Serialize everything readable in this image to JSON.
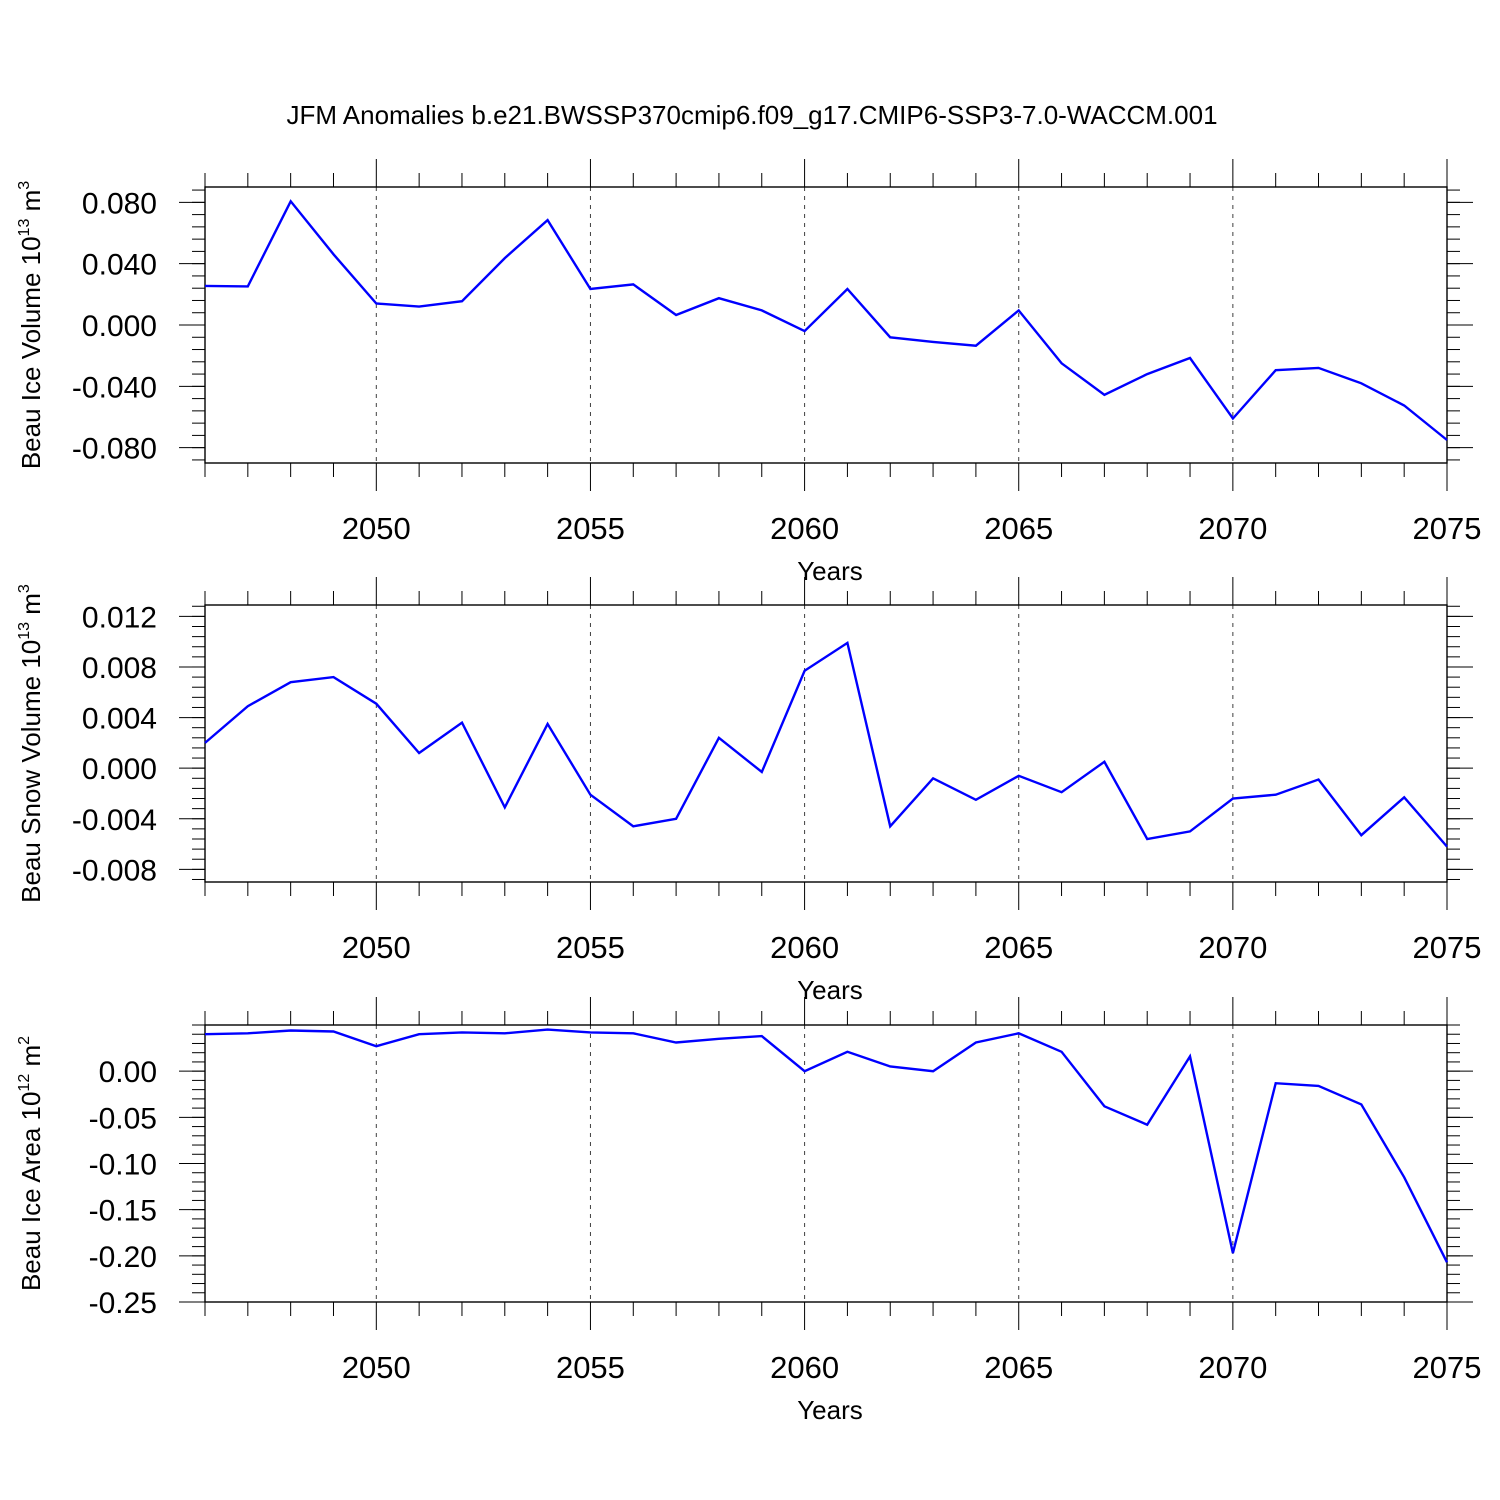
{
  "title": "JFM Anomalies b.e21.BWSSP370cmip6.f09_g17.CMIP6-SSP3-7.0-WACCM.001",
  "line_color": "#0000ff",
  "chart_data": [
    {
      "type": "line",
      "xlabel": "Years",
      "ylabel_main": "Beau Ice Volume 10",
      "ylabel_sup": "13",
      "ylabel_unit": " m",
      "ylabel_unit_sup": "3",
      "xlim": [
        2046,
        2075
      ],
      "ylim": [
        -0.09,
        0.09
      ],
      "xticks": [
        2050,
        2055,
        2060,
        2065,
        2070,
        2075
      ],
      "yticks": [
        0.08,
        0.04,
        0.0,
        -0.04,
        -0.08
      ],
      "ytick_labels": [
        "0.080",
        "0.040",
        "0.000",
        "-0.040",
        "-0.080"
      ],
      "x": [
        2046,
        2047,
        2048,
        2049,
        2050,
        2051,
        2052,
        2053,
        2054,
        2055,
        2056,
        2057,
        2058,
        2059,
        2060,
        2061,
        2062,
        2063,
        2064,
        2065,
        2066,
        2067,
        2068,
        2069,
        2070,
        2071,
        2072,
        2073,
        2074,
        2075
      ],
      "y": [
        0.0255,
        0.0252,
        0.0807,
        0.0461,
        0.014,
        0.012,
        0.0155,
        0.0436,
        0.0684,
        0.0235,
        0.0265,
        0.0065,
        0.0175,
        0.0095,
        -0.004,
        0.0235,
        -0.008,
        -0.011,
        -0.0135,
        0.0095,
        -0.025,
        -0.0455,
        -0.032,
        -0.0215,
        -0.061,
        -0.0295,
        -0.028,
        -0.038,
        -0.0525,
        -0.075
      ]
    },
    {
      "type": "line",
      "xlabel": "Years",
      "ylabel_main": "Beau Snow Volume 10",
      "ylabel_sup": "13",
      "ylabel_unit": " m",
      "ylabel_unit_sup": "3",
      "xlim": [
        2046,
        2075
      ],
      "ylim": [
        -0.009,
        0.0129
      ],
      "xticks": [
        2050,
        2055,
        2060,
        2065,
        2070,
        2075
      ],
      "yticks": [
        0.012,
        0.008,
        0.004,
        0.0,
        -0.004,
        -0.008
      ],
      "ytick_labels": [
        "0.012",
        "0.008",
        "0.004",
        "0.000",
        "-0.004",
        "-0.008"
      ],
      "x": [
        2046,
        2047,
        2048,
        2049,
        2050,
        2051,
        2052,
        2053,
        2054,
        2055,
        2056,
        2057,
        2058,
        2059,
        2060,
        2061,
        2062,
        2063,
        2064,
        2065,
        2066,
        2067,
        2068,
        2069,
        2070,
        2071,
        2072,
        2073,
        2074,
        2075
      ],
      "y": [
        0.002,
        0.0049,
        0.0068,
        0.0072,
        0.0051,
        0.0012,
        0.0036,
        -0.0031,
        0.0035,
        -0.0021,
        -0.0046,
        -0.004,
        0.0024,
        -0.0003,
        0.0077,
        0.0099,
        -0.0046,
        -0.0008,
        -0.0025,
        -0.0006,
        -0.0019,
        0.0005,
        -0.0056,
        -0.005,
        -0.0024,
        -0.0021,
        -0.0009,
        -0.0053,
        -0.0023,
        -0.0062
      ]
    },
    {
      "type": "line",
      "xlabel": "Years",
      "ylabel_main": "Beau Ice Area 10",
      "ylabel_sup": "12",
      "ylabel_unit": " m",
      "ylabel_unit_sup": "2",
      "xlim": [
        2046,
        2075
      ],
      "ylim": [
        -0.25,
        0.05
      ],
      "xticks": [
        2050,
        2055,
        2060,
        2065,
        2070,
        2075
      ],
      "yticks": [
        0.0,
        -0.05,
        -0.1,
        -0.15,
        -0.2,
        -0.25
      ],
      "ytick_labels": [
        "0.00",
        "-0.05",
        "-0.10",
        "-0.15",
        "-0.20",
        "-0.25"
      ],
      "x": [
        2046,
        2047,
        2048,
        2049,
        2050,
        2051,
        2052,
        2053,
        2054,
        2055,
        2056,
        2057,
        2058,
        2059,
        2060,
        2061,
        2062,
        2063,
        2064,
        2065,
        2066,
        2067,
        2068,
        2069,
        2070,
        2071,
        2072,
        2073,
        2074,
        2075
      ],
      "y": [
        0.04,
        0.041,
        0.044,
        0.043,
        0.027,
        0.04,
        0.042,
        0.041,
        0.045,
        0.042,
        0.041,
        0.031,
        0.035,
        0.038,
        0.0,
        0.021,
        0.005,
        0.0,
        0.031,
        0.041,
        0.021,
        -0.038,
        -0.058,
        0.016,
        -0.197,
        -0.013,
        -0.016,
        -0.036,
        -0.115,
        -0.207
      ]
    }
  ]
}
